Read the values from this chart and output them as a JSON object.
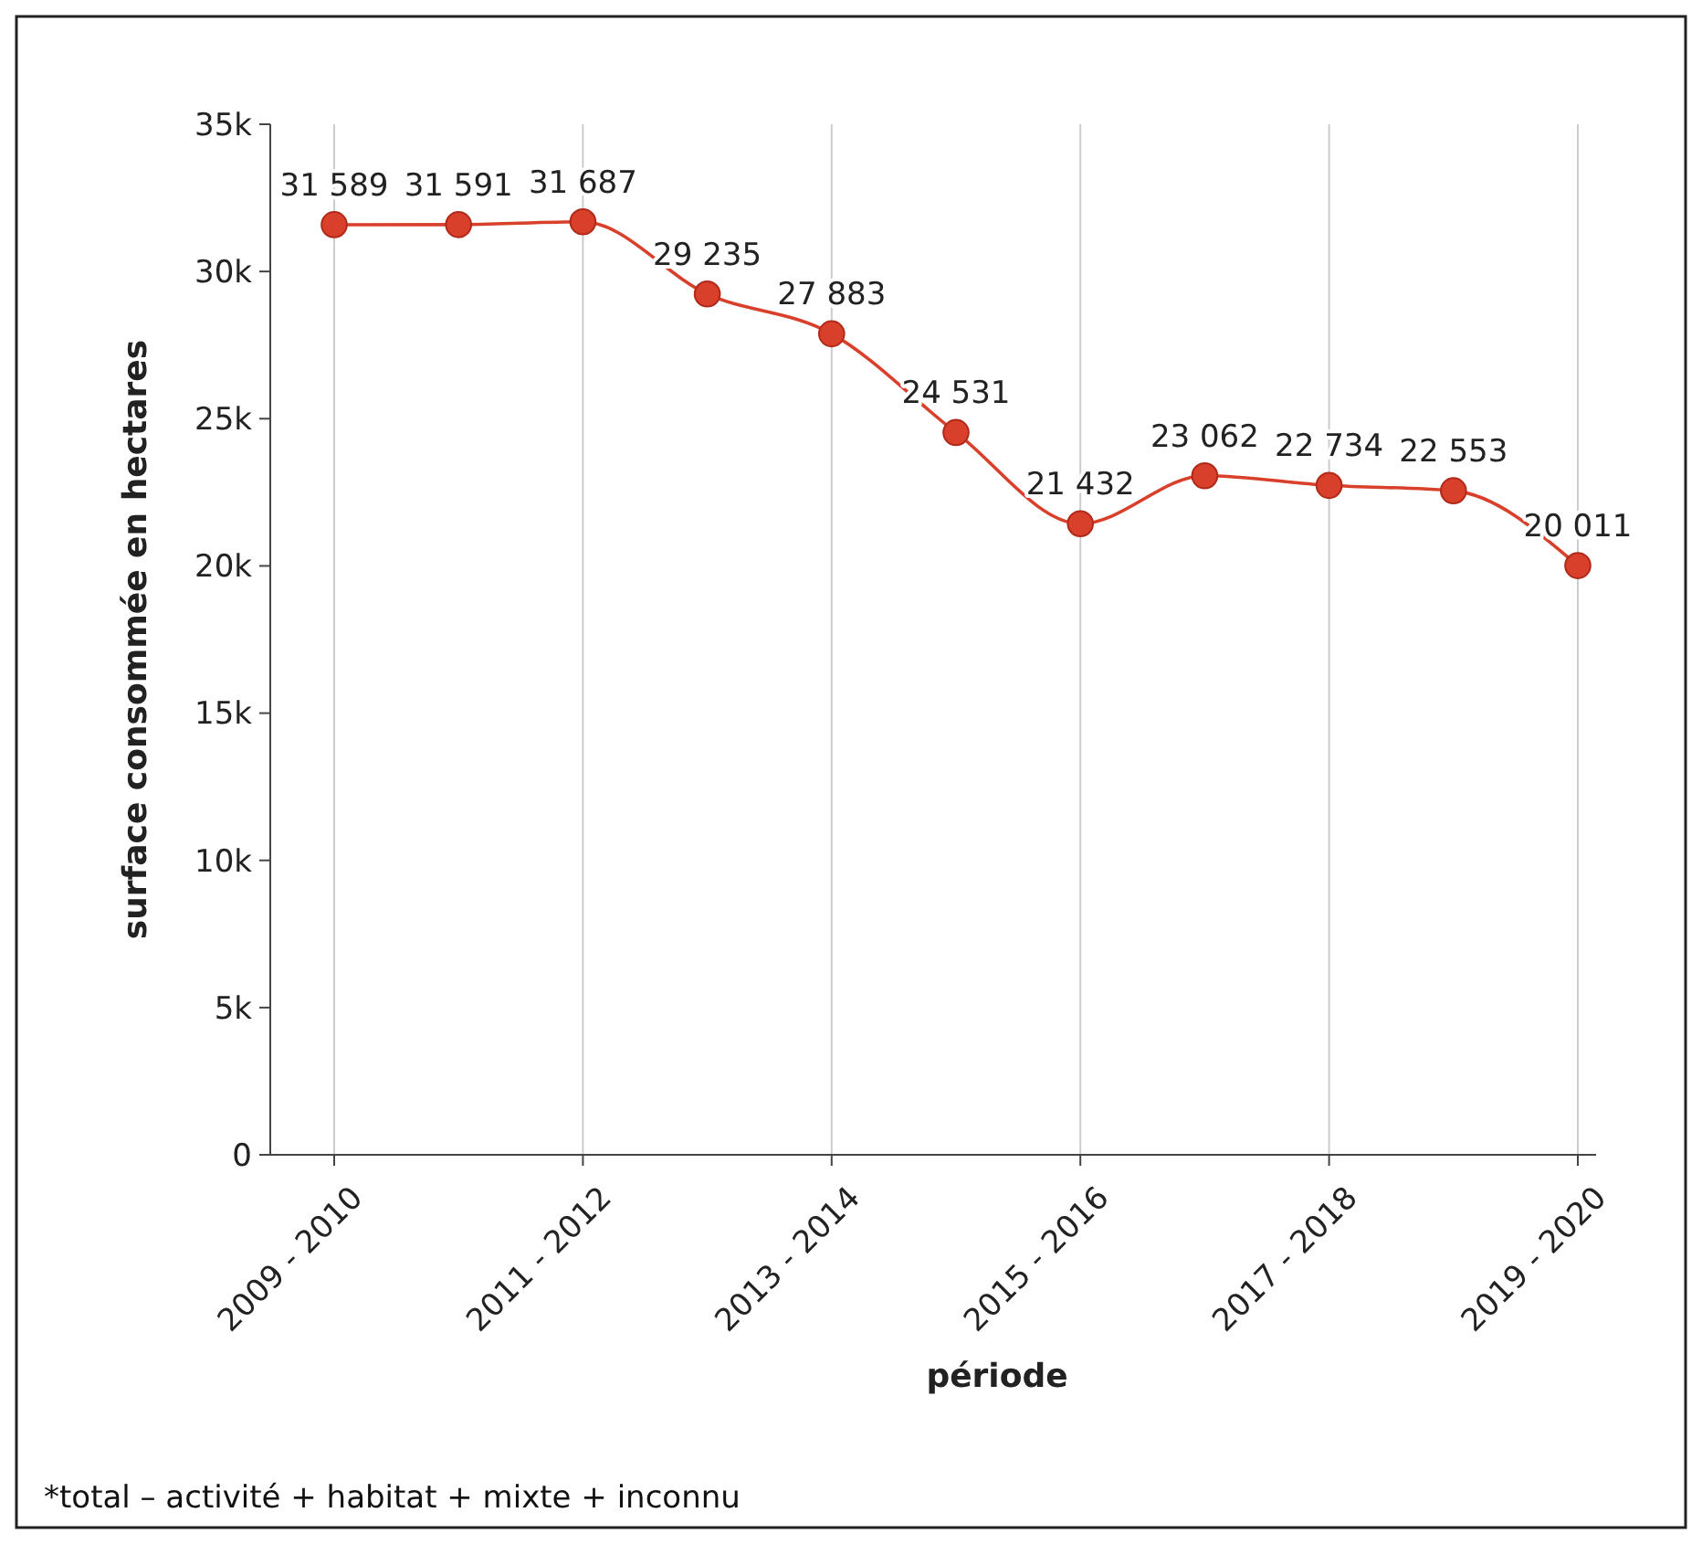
{
  "chart_data": {
    "type": "line",
    "xlabel": "période",
    "ylabel": "surface consommée en hectares",
    "categories": [
      "2009 - 2010",
      null,
      "2011 - 2012",
      null,
      "2013 - 2014",
      null,
      "2015 - 2016",
      null,
      "2017 - 2018",
      null,
      "2019 - 2020"
    ],
    "series": [
      {
        "color": "#d9402b",
        "values": [
          31589,
          31591,
          31687,
          29235,
          27883,
          24531,
          21432,
          23062,
          22734,
          22553,
          20011
        ],
        "value_labels": [
          "31 589",
          "31 591",
          "31 687",
          "29 235",
          "27 883",
          "24 531",
          "21 432",
          "23 062",
          "22 734",
          "22 553",
          "20 011"
        ]
      }
    ],
    "ylim": [
      0,
      35000
    ],
    "yticks": [
      0,
      {
        "value": 5000,
        "label": "5k"
      },
      {
        "value": 10000,
        "label": "10k"
      },
      {
        "value": 15000,
        "label": "15k"
      },
      {
        "value": 20000,
        "label": "20k"
      },
      {
        "value": 25000,
        "label": "25k"
      },
      {
        "value": 30000,
        "label": "30k"
      },
      {
        "value": 35000,
        "label": "35k"
      }
    ],
    "grid": "x",
    "marker": "circle",
    "line_style": "solid",
    "annotations": [
      "*total – activité + habitat + mixte + inconnu"
    ]
  }
}
